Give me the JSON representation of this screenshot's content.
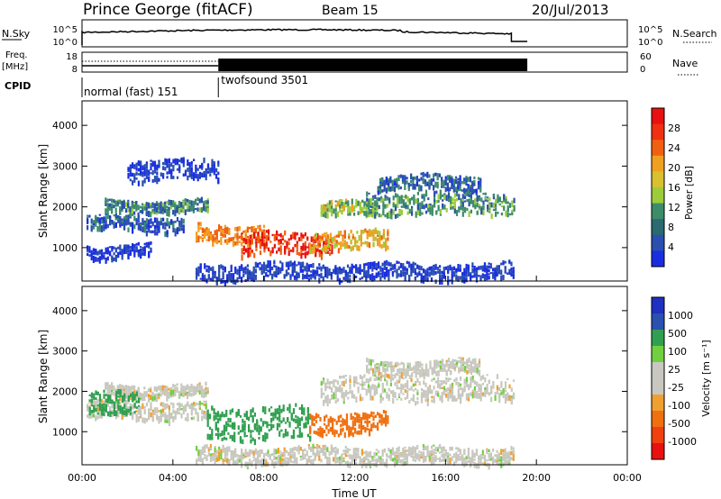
{
  "header": {
    "station": "Prince George (fitACF)",
    "beam": "Beam 15",
    "date": "20/Jul/2013"
  },
  "noise_panel": {
    "left_label": "N.Sky",
    "right_label": "N.Search",
    "left_ticks": [
      "10^5",
      "10^0"
    ],
    "right_ticks": [
      "10^5",
      "10^0"
    ]
  },
  "freq_panel": {
    "left_label_1": "Freq.",
    "left_label_2": "[MHz]",
    "right_label": "Nave",
    "left_ticks": [
      "18",
      "8"
    ],
    "right_ticks": [
      "60",
      "0"
    ]
  },
  "cpid": {
    "label": "CPID",
    "modes": [
      {
        "name": "normal (fast) 151",
        "start": 0.0,
        "end": 6.0
      },
      {
        "name": "twofsound 3501",
        "start": 6.0,
        "end": 24.0
      }
    ]
  },
  "colors": {
    "velocity_grey": "#c8c8c0"
  },
  "chart_data": [
    {
      "type": "heatmap",
      "title": "Power",
      "ylabel": "Slant Range [km]",
      "xlabel": "Time UT",
      "xlim": [
        0,
        24
      ],
      "ylim": [
        180,
        4600
      ],
      "x_ticks": [
        "00:00",
        "04:00",
        "08:00",
        "12:00",
        "16:00",
        "20:00",
        "00:00"
      ],
      "y_ticks": [
        "1000",
        "2000",
        "3000",
        "4000"
      ],
      "colorbar": {
        "label": "Power [dB]",
        "ticks": [
          "28",
          "24",
          "20",
          "16",
          "12",
          "8",
          "4"
        ]
      },
      "scatter_bands": [
        {
          "t0": 0.2,
          "t1": 4.5,
          "r0": 1450,
          "r1": 1800,
          "v": 8
        },
        {
          "t0": 1.0,
          "t1": 5.5,
          "r0": 1900,
          "r1": 2200,
          "v": 11
        },
        {
          "t0": 5.0,
          "t1": 8.0,
          "r0": 1150,
          "r1": 1600,
          "v": 22
        },
        {
          "t0": 7.0,
          "t1": 11.0,
          "r0": 850,
          "r1": 1400,
          "v": 27
        },
        {
          "t0": 10.0,
          "t1": 13.5,
          "r0": 1000,
          "r1": 1450,
          "v": 20
        },
        {
          "t0": 10.5,
          "t1": 13.0,
          "r0": 1800,
          "r1": 2150,
          "v": 15
        },
        {
          "t0": 12.5,
          "t1": 19.0,
          "r0": 1850,
          "r1": 2400,
          "v": 12
        },
        {
          "t0": 13.0,
          "t1": 17.5,
          "r0": 2450,
          "r1": 2800,
          "v": 9
        },
        {
          "t0": 2.0,
          "t1": 6.0,
          "r0": 2700,
          "r1": 3200,
          "v": 6
        },
        {
          "t0": 5.0,
          "t1": 19.0,
          "r0": 250,
          "r1": 650,
          "v": 6
        },
        {
          "t0": 0.2,
          "t1": 3.0,
          "r0": 800,
          "r1": 1100,
          "v": 5
        }
      ]
    },
    {
      "type": "heatmap",
      "title": "Velocity",
      "ylabel": "Slant Range [km]",
      "xlabel": "Time UT",
      "xlim": [
        0,
        24
      ],
      "ylim": [
        180,
        4600
      ],
      "x_ticks": [
        "00:00",
        "04:00",
        "08:00",
        "12:00",
        "16:00",
        "20:00",
        "00:00"
      ],
      "y_ticks": [
        "1000",
        "2000",
        "3000",
        "4000"
      ],
      "colorbar": {
        "label": "Velocity [m s⁻¹]",
        "ticks": [
          "1000",
          "500",
          "100",
          "25",
          "-25",
          "-100",
          "-500",
          "-1000"
        ]
      },
      "scatter_bands": [
        {
          "t0": 0.2,
          "t1": 5.5,
          "r0": 1350,
          "r1": 1800,
          "v": 0
        },
        {
          "t0": 1.0,
          "t1": 5.5,
          "r0": 1900,
          "r1": 2200,
          "v": 0
        },
        {
          "t0": 5.5,
          "t1": 10.0,
          "r0": 850,
          "r1": 1650,
          "v": 150
        },
        {
          "t0": 10.0,
          "t1": 13.5,
          "r0": 1000,
          "r1": 1500,
          "v": -150
        },
        {
          "t0": 10.5,
          "t1": 19.0,
          "r0": 1800,
          "r1": 2400,
          "v": 0
        },
        {
          "t0": 12.5,
          "t1": 17.5,
          "r0": 2450,
          "r1": 2800,
          "v": 0
        },
        {
          "t0": 0.3,
          "t1": 2.5,
          "r0": 1400,
          "r1": 2000,
          "v": 300
        },
        {
          "t0": 5.0,
          "t1": 19.0,
          "r0": 250,
          "r1": 650,
          "v": 0
        }
      ]
    }
  ]
}
